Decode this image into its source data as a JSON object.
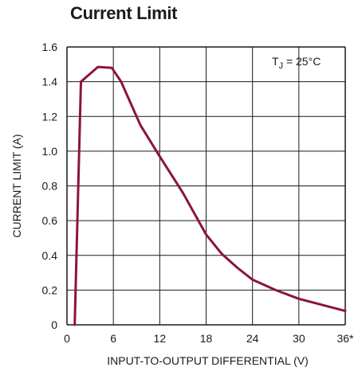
{
  "chart_data": {
    "type": "line",
    "title": "Current Limit",
    "xlabel": "INPUT-TO-OUTPUT DIFFERENTIAL (V)",
    "ylabel": "CURRENT LIMIT (A)",
    "xlim": [
      0,
      36
    ],
    "ylim": [
      0,
      1.6
    ],
    "x_ticks": [
      0,
      6,
      12,
      18,
      24,
      30,
      36
    ],
    "x_tick_labels": [
      "0",
      "6",
      "12",
      "18",
      "24",
      "30",
      "36*"
    ],
    "y_ticks": [
      0,
      0.2,
      0.4,
      0.6,
      0.8,
      1.0,
      1.2,
      1.4,
      1.6
    ],
    "y_tick_labels": [
      "0",
      "0.2",
      "0.4",
      "0.6",
      "0.8",
      "1.0",
      "1.2",
      "1.4",
      "1.6"
    ],
    "grid": true,
    "annotation": {
      "main": "T",
      "sub": "J",
      "rest": " = 25°C",
      "placement": "top-right"
    },
    "color": "#8b1538",
    "series": [
      {
        "x": [
          1.0,
          1.8,
          4.0,
          5.8,
          7.0,
          9.5,
          12.0,
          15.0,
          18.0,
          20.0,
          22.0,
          24.0,
          27.0,
          30.0,
          33.0,
          36.0
        ],
        "y": [
          0.0,
          1.4,
          1.485,
          1.48,
          1.4,
          1.15,
          0.97,
          0.76,
          0.52,
          0.41,
          0.33,
          0.26,
          0.2,
          0.15,
          0.115,
          0.08
        ]
      }
    ]
  }
}
